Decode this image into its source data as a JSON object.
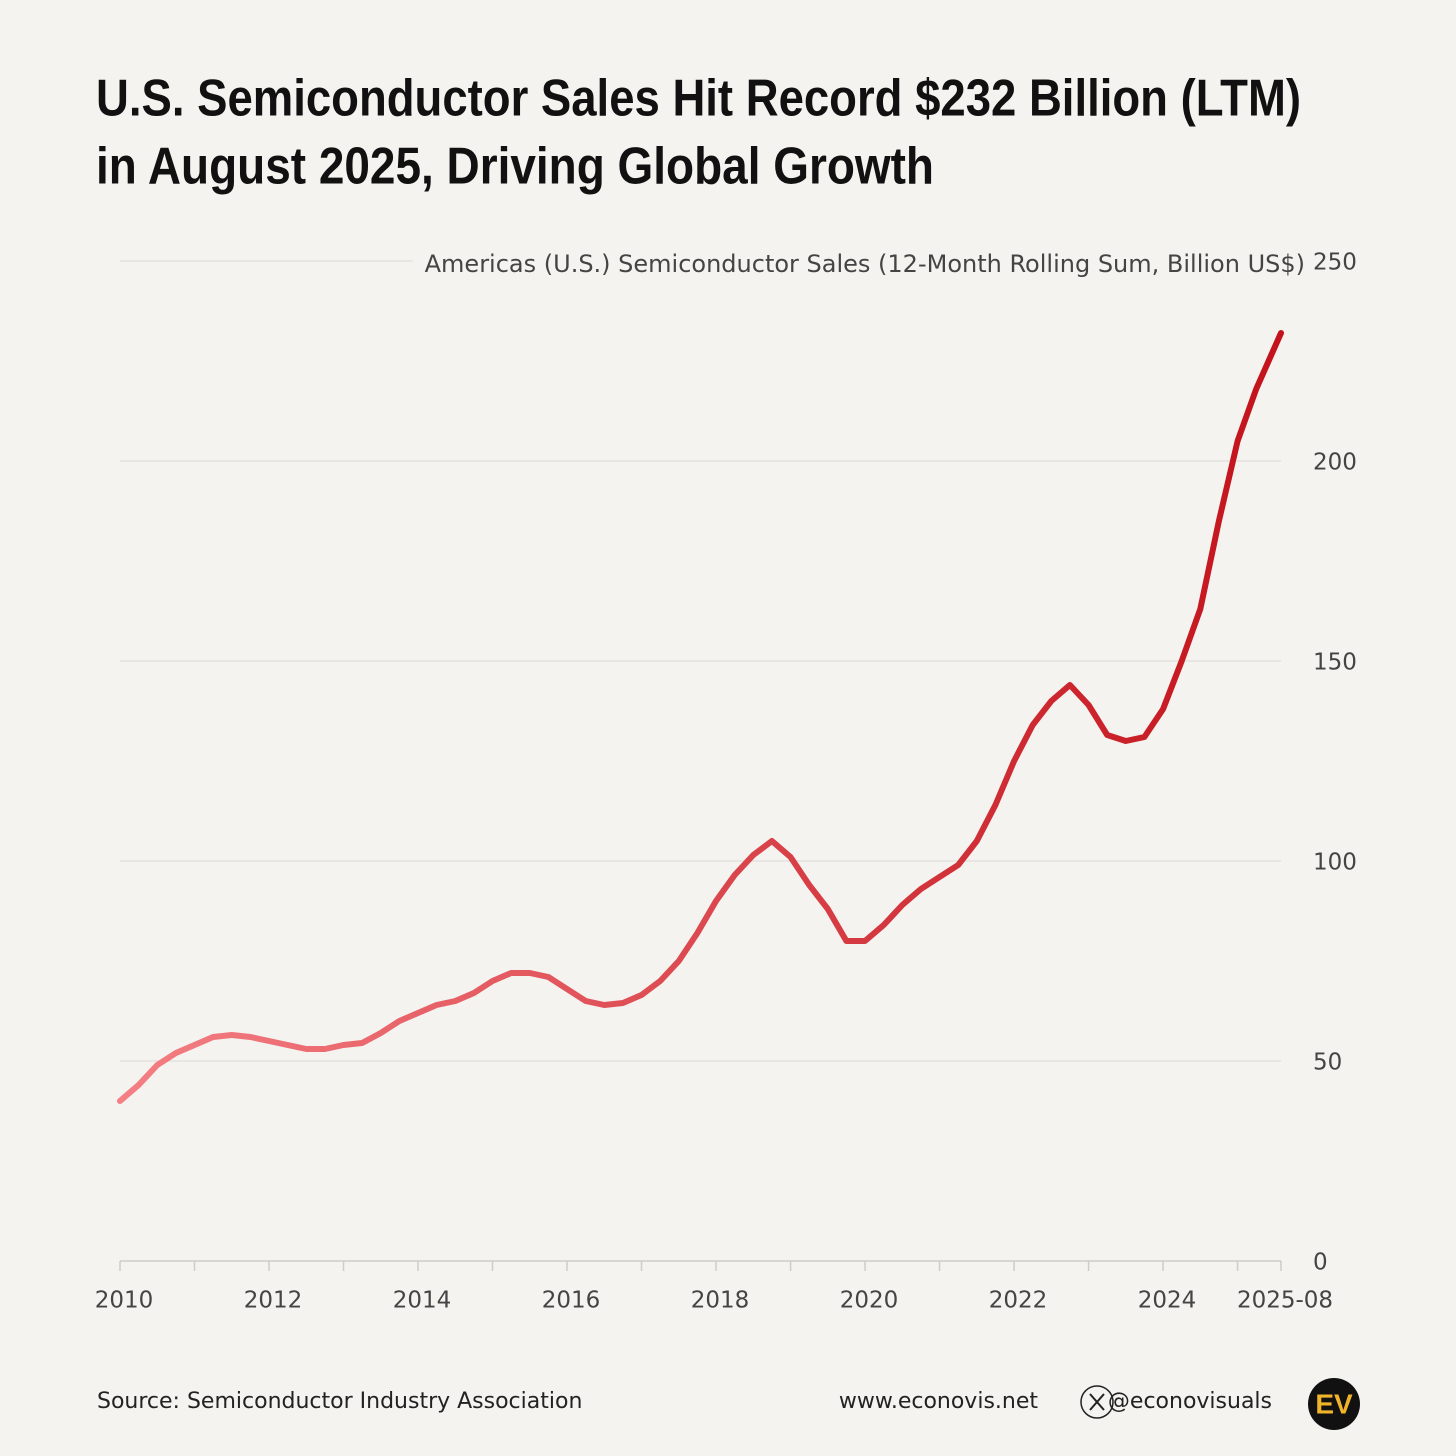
{
  "chart_data": {
    "type": "line",
    "title": [
      "U.S. Semiconductor Sales Hit Record $232 Billion (LTM)",
      "in August 2025, Driving Global Growth"
    ],
    "y_axis_label": "Americas (U.S.) Semiconductor Sales (12-Month Rolling Sum, Billion US$)",
    "source": "Source: Semiconductor Industry Association",
    "website": "www.econovis.net",
    "handle": "@econovisuals",
    "logo": "EV",
    "x": [
      2010,
      2010.25,
      2010.5,
      2010.75,
      2011,
      2011.25,
      2011.5,
      2011.75,
      2012,
      2012.25,
      2012.5,
      2012.75,
      2013,
      2013.25,
      2013.5,
      2013.75,
      2014,
      2014.25,
      2014.5,
      2014.75,
      2015,
      2015.25,
      2015.5,
      2015.75,
      2016,
      2016.25,
      2016.5,
      2016.75,
      2017,
      2017.25,
      2017.5,
      2017.75,
      2018,
      2018.25,
      2018.5,
      2018.75,
      2019,
      2019.25,
      2019.5,
      2019.75,
      2020,
      2020.25,
      2020.5,
      2020.75,
      2021,
      2021.25,
      2021.5,
      2021.75,
      2022,
      2022.25,
      2022.5,
      2022.75,
      2023,
      2023.25,
      2023.5,
      2023.75,
      2024,
      2024.25,
      2024.5,
      2024.75,
      2025,
      2025.25,
      2025.583
    ],
    "values": [
      40,
      44,
      49,
      52,
      54,
      56,
      56.5,
      56,
      55,
      54,
      53,
      53,
      54,
      54.5,
      57,
      60,
      62,
      64,
      65,
      67,
      70,
      72,
      72,
      71,
      68,
      65,
      64,
      64.5,
      66.5,
      70,
      75,
      82,
      90,
      96.5,
      101.5,
      105,
      101,
      94,
      88,
      80,
      80,
      84,
      89,
      93,
      96,
      99,
      105,
      114,
      125,
      134,
      140,
      144,
      139,
      131.5,
      130,
      131,
      138,
      150,
      163,
      185,
      205,
      218,
      232
    ],
    "color_start": "#f47f84",
    "color": "#c3121b",
    "xlim": [
      2010,
      2025.583
    ],
    "xticks": [
      2010,
      2012,
      2014,
      2016,
      2018,
      2020,
      2022,
      2024,
      {
        "value": 2025.583,
        "label": "2025-08"
      }
    ],
    "minor_xticks": [
      2011,
      2013,
      2015,
      2017,
      2019,
      2021,
      2023,
      2025
    ],
    "ylim": [
      0,
      250
    ],
    "yticks": [
      0,
      50,
      100,
      150,
      200,
      250
    ],
    "grid": true
  }
}
